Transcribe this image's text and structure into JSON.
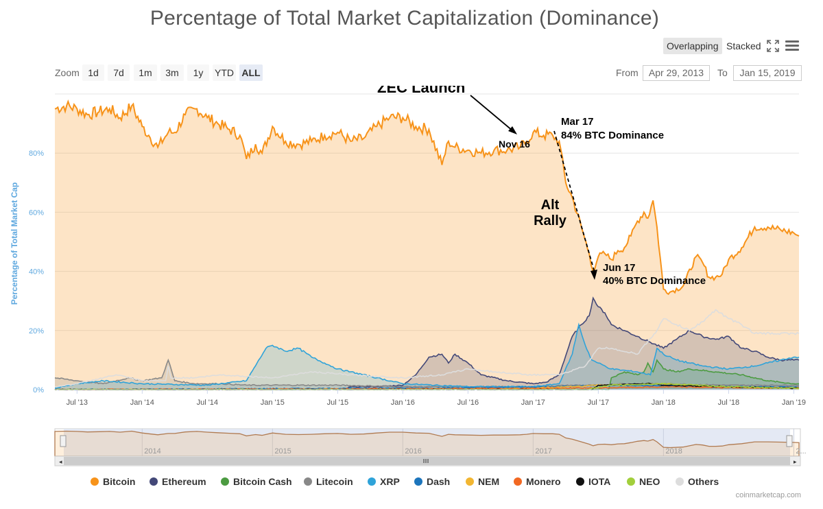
{
  "title": "Percentage of Total Market Capitalization (Dominance)",
  "toolbar": {
    "overlapping_label": "Overlapping",
    "stacked_label": "Stacked",
    "fullscreen_icon": "fullscreen-icon",
    "menu_icon": "hamburger-menu-icon"
  },
  "zoom": {
    "label": "Zoom",
    "buttons": [
      "1d",
      "7d",
      "1m",
      "3m",
      "1y",
      "YTD",
      "ALL"
    ],
    "active": "ALL"
  },
  "range": {
    "from_label": "From",
    "from_value": "Apr 29, 2013",
    "to_label": "To",
    "to_value": "Jan 15, 2019"
  },
  "credit": "coinmarketcap.com",
  "chart_data": {
    "type": "area",
    "title": "Percentage of Total Market Capitalization (Dominance)",
    "ylabel": "Percentage of Total Market Cap",
    "xlabel": "",
    "ylim": [
      0,
      100
    ],
    "xlim": [
      2013.33,
      2019.04
    ],
    "yticks": [
      0,
      20,
      40,
      60,
      80
    ],
    "ytick_labels": [
      "0%",
      "20%",
      "40%",
      "60%",
      "80%"
    ],
    "xticks": [
      2013.5,
      2014.0,
      2014.5,
      2015.0,
      2015.5,
      2016.0,
      2016.5,
      2017.0,
      2017.5,
      2018.0,
      2018.5,
      2019.0
    ],
    "xtick_labels": [
      "Jul '13",
      "Jan '14",
      "Jul '14",
      "Jan '15",
      "Jul '15",
      "Jan '16",
      "Jul '16",
      "Jan '17",
      "Jul '17",
      "Jan '18",
      "Jul '18",
      "Jan '19"
    ],
    "legend_position": "bottom",
    "grid": true,
    "series": [
      {
        "name": "Bitcoin",
        "color": "#f7931a",
        "fill": true,
        "x": [
          2013.33,
          2013.42,
          2013.5,
          2013.58,
          2013.67,
          2013.75,
          2013.83,
          2013.92,
          2014.0,
          2014.05,
          2014.12,
          2014.2,
          2014.25,
          2014.33,
          2014.42,
          2014.5,
          2014.58,
          2014.67,
          2014.75,
          2014.8,
          2014.87,
          2014.92,
          2015.0,
          2015.1,
          2015.2,
          2015.3,
          2015.4,
          2015.5,
          2015.6,
          2015.7,
          2015.8,
          2015.9,
          2016.0,
          2016.1,
          2016.2,
          2016.3,
          2016.35,
          2016.4,
          2016.5,
          2016.6,
          2016.7,
          2016.8,
          2016.9,
          2016.95,
          2017.0,
          2017.08,
          2017.15,
          2017.2,
          2017.25,
          2017.3,
          2017.37,
          2017.43,
          2017.46,
          2017.5,
          2017.55,
          2017.6,
          2017.65,
          2017.7,
          2017.75,
          2017.8,
          2017.85,
          2017.88,
          2017.92,
          2017.95,
          2018.0,
          2018.05,
          2018.15,
          2018.25,
          2018.3,
          2018.35,
          2018.4,
          2018.45,
          2018.5,
          2018.6,
          2018.7,
          2018.8,
          2018.9,
          2019.0,
          2019.04
        ],
        "y": [
          95,
          96,
          95,
          93,
          94,
          95,
          92,
          96,
          89,
          86,
          82,
          87,
          87,
          93,
          95,
          92,
          90,
          88,
          86,
          78,
          83,
          80,
          89,
          84,
          83,
          84,
          86,
          87,
          84,
          85,
          89,
          92,
          92,
          89,
          88,
          76,
          84,
          82,
          81,
          80,
          81,
          81,
          82,
          84,
          87,
          86,
          86,
          84,
          70,
          65,
          55,
          46,
          40,
          45,
          46,
          44,
          47,
          48,
          52,
          57,
          60,
          58,
          64,
          55,
          34,
          33,
          35,
          45,
          43,
          38,
          38,
          39,
          44,
          48,
          55,
          55,
          54,
          53,
          52
        ]
      },
      {
        "name": "Ethereum",
        "color": "#434878",
        "fill": true,
        "x": [
          2013.33,
          2015.55,
          2015.6,
          2015.8,
          2016.0,
          2016.1,
          2016.2,
          2016.3,
          2016.35,
          2016.4,
          2016.5,
          2016.6,
          2016.8,
          2017.0,
          2017.1,
          2017.2,
          2017.3,
          2017.37,
          2017.43,
          2017.46,
          2017.5,
          2017.55,
          2017.6,
          2017.7,
          2017.8,
          2017.9,
          2018.0,
          2018.1,
          2018.2,
          2018.3,
          2018.4,
          2018.5,
          2018.6,
          2018.7,
          2018.8,
          2018.9,
          2019.0,
          2019.04
        ],
        "y": [
          0,
          0,
          1,
          1,
          1.5,
          5,
          11,
          12,
          9,
          12,
          9,
          5,
          3,
          2,
          2.5,
          5,
          18,
          22,
          25,
          31,
          28,
          26,
          22,
          20,
          18,
          16,
          14,
          17,
          20,
          18,
          17,
          18,
          14,
          13,
          11,
          10,
          10,
          10
        ]
      },
      {
        "name": "Bitcoin Cash",
        "color": "#4c9b41",
        "fill": true,
        "x": [
          2013.33,
          2017.58,
          2017.6,
          2017.7,
          2017.8,
          2017.85,
          2017.88,
          2017.92,
          2017.95,
          2018.0,
          2018.1,
          2018.2,
          2018.4,
          2018.6,
          2018.8,
          2019.0,
          2019.04
        ],
        "y": [
          0,
          0,
          4,
          6,
          5,
          6,
          9,
          6,
          10,
          7,
          6,
          7,
          6,
          5,
          3,
          2,
          2
        ]
      },
      {
        "name": "Litecoin",
        "color": "#888888",
        "fill": true,
        "x": [
          2013.33,
          2013.5,
          2013.7,
          2013.9,
          2014.0,
          2014.15,
          2014.2,
          2014.25,
          2014.4,
          2014.6,
          2014.8,
          2015.0,
          2015.5,
          2016.0,
          2016.5,
          2017.0,
          2017.3,
          2017.5,
          2017.7,
          2017.9,
          2018.0,
          2018.5,
          2019.0,
          2019.04
        ],
        "y": [
          4,
          3,
          2,
          4,
          3,
          4,
          10,
          3,
          2,
          2,
          1.5,
          1.5,
          1.5,
          1,
          1,
          1,
          1.5,
          1.5,
          2,
          2,
          2,
          1.5,
          1.5,
          1.5
        ]
      },
      {
        "name": "XRP",
        "color": "#2fa3d9",
        "fill": true,
        "x": [
          2013.33,
          2013.5,
          2013.7,
          2014.0,
          2014.5,
          2014.8,
          2014.95,
          2015.0,
          2015.1,
          2015.2,
          2015.3,
          2015.4,
          2015.5,
          2015.6,
          2015.8,
          2016.0,
          2016.5,
          2017.0,
          2017.2,
          2017.3,
          2017.35,
          2017.4,
          2017.45,
          2017.5,
          2017.6,
          2017.8,
          2017.9,
          2017.95,
          2018.0,
          2018.1,
          2018.3,
          2018.5,
          2018.7,
          2018.8,
          2019.0,
          2019.04
        ],
        "y": [
          0.5,
          2,
          3,
          2,
          1.5,
          3,
          14,
          15,
          13,
          14,
          11,
          9,
          7,
          6,
          4,
          2,
          1,
          1,
          2,
          12,
          22,
          15,
          10,
          9,
          7,
          6,
          5,
          14,
          12,
          10,
          8,
          7,
          8,
          9,
          11,
          11
        ]
      },
      {
        "name": "Dash",
        "color": "#1c75bc",
        "fill": false,
        "x": [
          2013.33,
          2016.0,
          2016.5,
          2017.0,
          2017.3,
          2017.5,
          2018.0,
          2018.5,
          2019.0,
          2019.04
        ],
        "y": [
          0,
          0.5,
          0.6,
          0.8,
          1.2,
          1.5,
          1.3,
          1.0,
          0.8,
          0.8
        ]
      },
      {
        "name": "NEM",
        "color": "#f2b632",
        "fill": false,
        "x": [
          2013.33,
          2016.5,
          2017.0,
          2017.3,
          2017.5,
          2018.0,
          2018.5,
          2019.0,
          2019.04
        ],
        "y": [
          0,
          0.2,
          0.5,
          1,
          1.5,
          2,
          0.8,
          0.4,
          0.4
        ]
      },
      {
        "name": "Monero",
        "color": "#f26822",
        "fill": false,
        "x": [
          2013.33,
          2016.5,
          2017.0,
          2017.5,
          2018.0,
          2018.5,
          2019.0,
          2019.04
        ],
        "y": [
          0,
          0.3,
          0.4,
          0.6,
          0.9,
          0.7,
          0.6,
          0.6
        ]
      },
      {
        "name": "IOTA",
        "color": "#111111",
        "fill": false,
        "x": [
          2013.33,
          2017.45,
          2017.5,
          2017.9,
          2018.0,
          2018.5,
          2019.0,
          2019.04
        ],
        "y": [
          0,
          0,
          1.5,
          2,
          1.5,
          1,
          0.5,
          0.5
        ]
      },
      {
        "name": "NEO",
        "color": "#a2cf3c",
        "fill": false,
        "x": [
          2013.33,
          2017.4,
          2017.6,
          2018.0,
          2018.5,
          2019.0,
          2019.04
        ],
        "y": [
          0,
          0,
          1.5,
          2,
          1,
          0.5,
          0.5
        ]
      },
      {
        "name": "Others",
        "color": "#dddddd",
        "fill": false,
        "x": [
          2013.33,
          2013.5,
          2013.8,
          2014.0,
          2014.18,
          2014.2,
          2014.22,
          2014.4,
          2014.6,
          2015.0,
          2015.3,
          2015.6,
          2016.0,
          2016.3,
          2016.5,
          2016.7,
          2017.0,
          2017.2,
          2017.4,
          2017.5,
          2017.6,
          2017.8,
          2017.95,
          2018.0,
          2018.1,
          2018.2,
          2018.3,
          2018.4,
          2018.5,
          2018.6,
          2018.7,
          2019.0,
          2019.04
        ],
        "y": [
          1,
          2,
          5,
          3,
          3,
          8,
          4,
          4,
          5,
          4,
          6,
          5,
          4,
          5,
          7,
          6,
          5,
          5,
          8,
          14,
          14,
          12,
          20,
          24,
          22,
          20,
          23,
          27,
          24,
          22,
          19,
          19,
          19
        ]
      }
    ],
    "annotations": [
      {
        "text": "ZEC Launch",
        "bold": true,
        "size": "large"
      },
      {
        "text": "Nov 16"
      },
      {
        "text": "Mar 17"
      },
      {
        "text": "84% BTC Dominance"
      },
      {
        "text": "Alt"
      },
      {
        "text": "Rally"
      },
      {
        "text": "Jun 17"
      },
      {
        "text": "40% BTC Dominance"
      }
    ],
    "navigator": {
      "labels": [
        "2014",
        "2015",
        "2016",
        "2017",
        "2018",
        "2..."
      ]
    }
  }
}
